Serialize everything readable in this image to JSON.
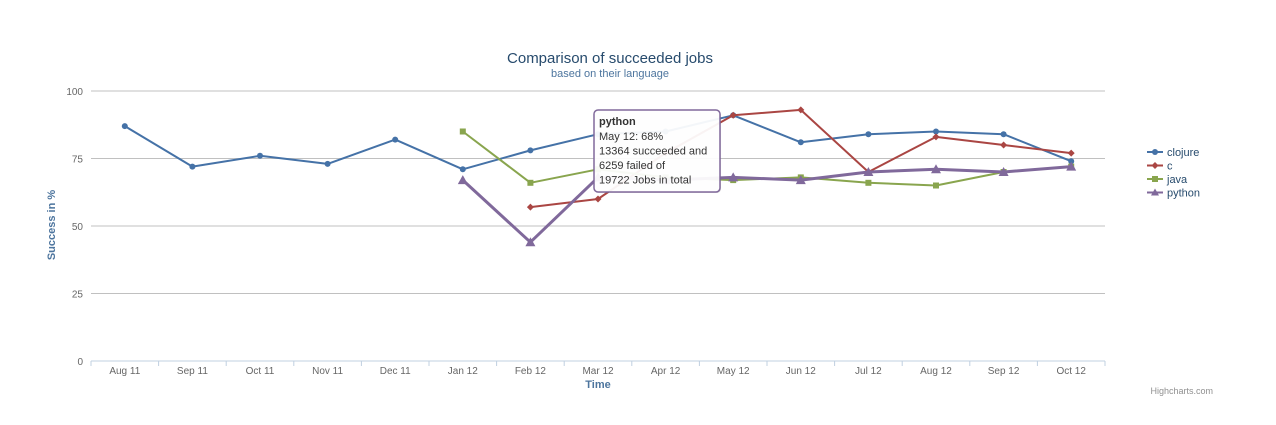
{
  "chart_data": {
    "type": "line",
    "title": "Comparison of succeeded jobs",
    "subtitle": "based on their language",
    "xlabel": "Time",
    "ylabel": "Success in %",
    "ylim": [
      0,
      100
    ],
    "yticks": [
      0,
      25,
      50,
      75,
      100
    ],
    "grid": true,
    "legend_position": "right",
    "categories": [
      "Aug 11",
      "Sep 11",
      "Oct 11",
      "Nov 11",
      "Dec 11",
      "Jan 12",
      "Feb 12",
      "Mar 12",
      "Apr 12",
      "May 12",
      "Jun 12",
      "Jul 12",
      "Aug 12",
      "Sep 12",
      "Oct 12"
    ],
    "series": [
      {
        "name": "clojure",
        "color": "#4572a7",
        "marker": "circle",
        "values": [
          87,
          72,
          76,
          73,
          82,
          71,
          78,
          84,
          85,
          91,
          81,
          84,
          85,
          84,
          74
        ]
      },
      {
        "name": "c",
        "color": "#aa4643",
        "marker": "diamond",
        "values": [
          null,
          null,
          null,
          null,
          null,
          null,
          57,
          60,
          77,
          91,
          93,
          70,
          83,
          80,
          77
        ]
      },
      {
        "name": "java",
        "color": "#89a54e",
        "marker": "square",
        "values": [
          null,
          null,
          null,
          null,
          null,
          85,
          66,
          71,
          68,
          67,
          68,
          66,
          65,
          70,
          72
        ]
      },
      {
        "name": "python",
        "color": "#80699b",
        "marker": "triangle",
        "values": [
          null,
          null,
          null,
          null,
          null,
          67,
          44,
          68,
          67,
          68,
          67,
          70,
          71,
          70,
          72
        ]
      }
    ],
    "highlighted_series": "python",
    "tooltip": {
      "header": "python",
      "lines": [
        "May 12: 68%",
        "13364 succeeded and",
        "6259 failed of",
        "19722 Jobs in total"
      ]
    },
    "credits": "Highcharts.com"
  }
}
